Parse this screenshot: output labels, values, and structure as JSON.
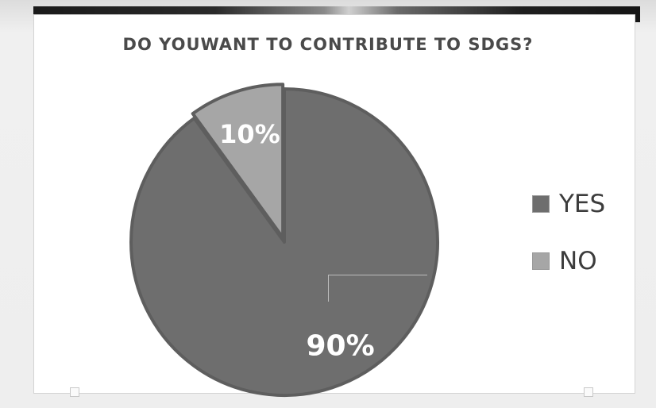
{
  "chart_data": {
    "type": "pie",
    "title": "DO YOUWANT TO CONTRIBUTE TO SDGS?",
    "categories": [
      "YES",
      "NO"
    ],
    "values": [
      90,
      10
    ],
    "labels": [
      "90%",
      "10%"
    ],
    "colors": [
      "#6e6e6e",
      "#a6a6a6"
    ],
    "legend_position": "right"
  }
}
